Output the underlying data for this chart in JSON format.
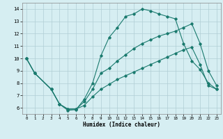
{
  "xlabel": "Humidex (Indice chaleur)",
  "bg_color": "#d6eef2",
  "grid_color": "#b0cdd4",
  "line_color": "#1a7a6e",
  "xlim": [
    -0.5,
    23.5
  ],
  "ylim": [
    5.5,
    14.5
  ],
  "xticks": [
    0,
    1,
    2,
    3,
    4,
    5,
    6,
    7,
    8,
    9,
    10,
    11,
    12,
    13,
    14,
    15,
    16,
    17,
    18,
    19,
    20,
    21,
    22,
    23
  ],
  "yticks": [
    6,
    7,
    8,
    9,
    10,
    11,
    12,
    13,
    14
  ],
  "line1_x": [
    0,
    1,
    3,
    4,
    5,
    6,
    7,
    8,
    9,
    10,
    11,
    12,
    13,
    14,
    15,
    16,
    17,
    18,
    19,
    20,
    21,
    22,
    23
  ],
  "line1_y": [
    10,
    8.8,
    7.5,
    6.3,
    5.8,
    5.85,
    6.7,
    8.0,
    10.2,
    11.7,
    12.5,
    13.4,
    13.6,
    14.0,
    13.85,
    13.6,
    13.4,
    13.2,
    11.2,
    9.8,
    9.1,
    8.0,
    7.5
  ],
  "line2_x": [
    0,
    1,
    3,
    4,
    5,
    6,
    7,
    8,
    9,
    10,
    11,
    12,
    13,
    14,
    15,
    16,
    17,
    18,
    19,
    20,
    21,
    22,
    23
  ],
  "line2_y": [
    10,
    8.8,
    7.5,
    6.3,
    5.9,
    5.9,
    6.5,
    7.5,
    8.8,
    9.2,
    9.8,
    10.3,
    10.8,
    11.2,
    11.5,
    11.8,
    12.0,
    12.2,
    12.5,
    12.8,
    11.2,
    9.0,
    7.8
  ],
  "line3_x": [
    0,
    1,
    3,
    4,
    5,
    6,
    7,
    8,
    9,
    10,
    11,
    12,
    13,
    14,
    15,
    16,
    17,
    18,
    19,
    20,
    21,
    22,
    23
  ],
  "line3_y": [
    10,
    8.8,
    7.5,
    6.3,
    5.9,
    5.9,
    6.2,
    6.9,
    7.5,
    7.9,
    8.3,
    8.6,
    8.9,
    9.2,
    9.5,
    9.8,
    10.1,
    10.4,
    10.7,
    10.9,
    9.5,
    7.8,
    7.5
  ]
}
